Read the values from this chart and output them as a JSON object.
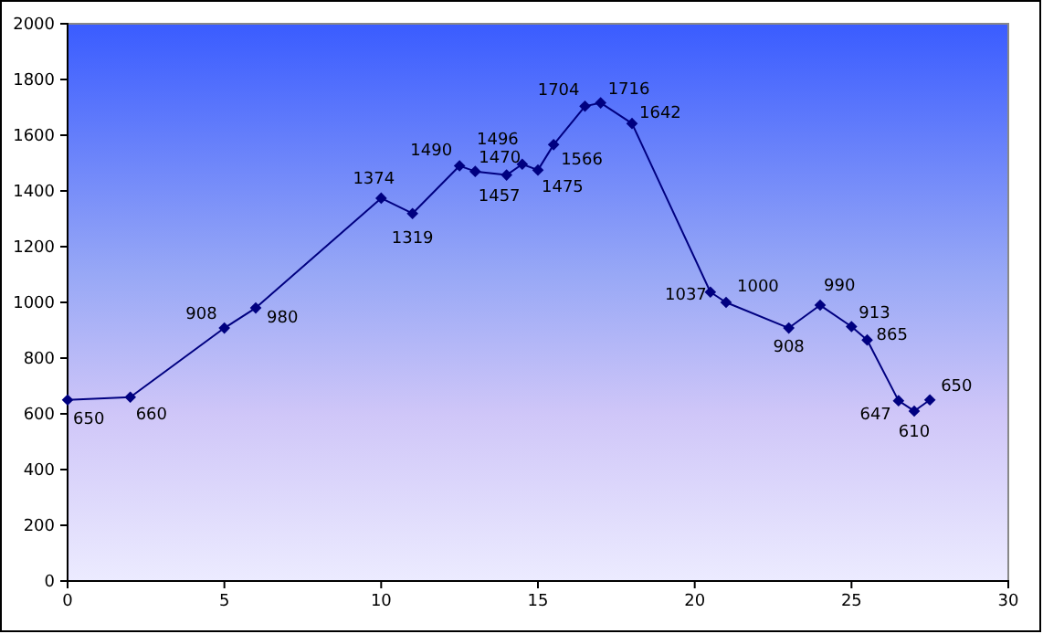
{
  "chart_data": {
    "type": "line",
    "x": [
      0,
      2,
      5,
      6,
      10,
      11,
      12.5,
      13,
      14,
      14.5,
      15,
      15.5,
      16.5,
      17,
      18,
      20.5,
      21,
      23,
      24,
      25,
      25.5,
      26.5,
      27,
      27.5
    ],
    "series": [
      {
        "color": "#000080",
        "values": [
          650,
          660,
          908,
          980,
          1374,
          1319,
          1490,
          1470,
          1457,
          1496,
          1475,
          1566,
          1704,
          1716,
          1642,
          1037,
          1000,
          908,
          990,
          913,
          865,
          647,
          610,
          650
        ]
      }
    ],
    "xlim": [
      0,
      30
    ],
    "xticks": [
      0,
      5,
      10,
      15,
      20,
      25,
      30
    ],
    "ylim": [
      0,
      2000
    ],
    "yticks": [
      0,
      200,
      400,
      600,
      800,
      1000,
      1200,
      1400,
      1600,
      1800,
      2000
    ],
    "marker": "diamond",
    "line_style": "solid",
    "data_labels": true
  }
}
